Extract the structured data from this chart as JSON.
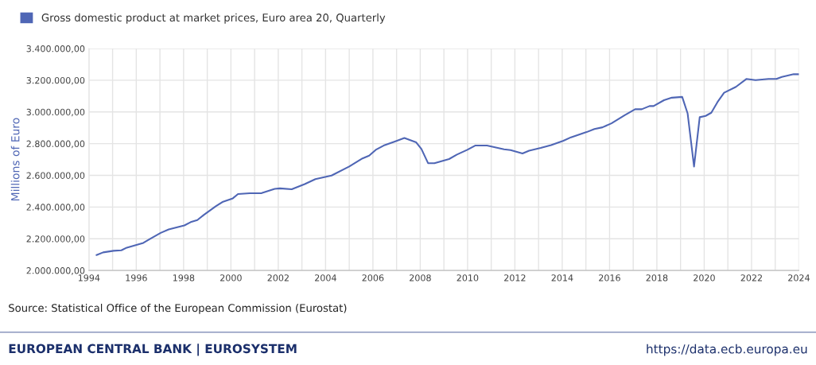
{
  "chart_data": {
    "type": "line",
    "xlabel": null,
    "ylabel": "Millions of Euro",
    "x": [
      1994.32,
      1994.6,
      1995.04,
      1995.37,
      1995.6,
      1996.3,
      1996.6,
      1997.03,
      1997.37,
      1998.03,
      1998.3,
      1998.58,
      1998.86,
      1999.36,
      1999.64,
      2000.08,
      2000.3,
      2000.8,
      2001.3,
      2001.85,
      2002.07,
      2002.57,
      2003.12,
      2003.57,
      2004.25,
      2005.0,
      2005.56,
      2005.84,
      2006.12,
      2006.5,
      2006.95,
      2007.33,
      2007.83,
      2008.05,
      2008.33,
      2008.6,
      2009.22,
      2009.55,
      2009.99,
      2010.32,
      2010.82,
      2011.54,
      2011.82,
      2012.32,
      2012.6,
      2013.09,
      2013.53,
      2014.05,
      2014.37,
      2015.03,
      2015.36,
      2015.7,
      2016.08,
      2016.64,
      2017.08,
      2017.36,
      2017.69,
      2017.86,
      2018.3,
      2018.63,
      2019.07,
      2019.3,
      2019.57,
      2019.81,
      2020.06,
      2020.3,
      2020.56,
      2020.84,
      2021.34,
      2021.78,
      2022.17,
      2022.72,
      2023.05,
      2023.28,
      2023.78,
      2024.0
    ],
    "series": [
      {
        "name": "Gross domestic product at market prices, Euro area 20, Quarterly",
        "color": "#4f66b5",
        "values": [
          2097000,
          2114000,
          2124000,
          2127000,
          2144000,
          2174000,
          2201000,
          2237000,
          2259000,
          2284000,
          2305000,
          2318000,
          2351000,
          2405000,
          2432000,
          2455000,
          2482000,
          2487000,
          2488000,
          2515000,
          2518000,
          2512000,
          2545000,
          2576000,
          2599000,
          2656000,
          2707000,
          2724000,
          2761000,
          2791000,
          2815000,
          2836000,
          2808000,
          2766000,
          2677000,
          2677000,
          2703000,
          2731000,
          2761000,
          2788000,
          2788000,
          2764000,
          2759000,
          2738000,
          2756000,
          2773000,
          2791000,
          2818000,
          2840000,
          2873000,
          2892000,
          2903000,
          2928000,
          2979000,
          3017000,
          3017000,
          3037000,
          3037000,
          3074000,
          3090000,
          3095000,
          2990000,
          2656000,
          2967000,
          2975000,
          2995000,
          3062000,
          3121000,
          3158000,
          3208000,
          3201000,
          3208000,
          3208000,
          3221000,
          3238000,
          3238000
        ]
      }
    ],
    "xlim": [
      1994,
      2024
    ],
    "xticks": [
      1994,
      {
        "value": 1995,
        "label": null
      },
      1996,
      {
        "value": 1997,
        "label": null
      },
      1998,
      {
        "value": 1999,
        "label": null
      },
      2000,
      {
        "value": 2001,
        "label": null
      },
      2002,
      {
        "value": 2003,
        "label": null
      },
      2004,
      {
        "value": 2005,
        "label": null
      },
      2006,
      {
        "value": 2007,
        "label": null
      },
      2008,
      {
        "value": 2009,
        "label": null
      },
      2010,
      {
        "value": 2011,
        "label": null
      },
      2012,
      {
        "value": 2013,
        "label": null
      },
      2014,
      {
        "value": 2015,
        "label": null
      },
      2016,
      {
        "value": 2017,
        "label": null
      },
      2018,
      {
        "value": 2019,
        "label": null
      },
      2020,
      {
        "value": 2021,
        "label": null
      },
      2022,
      {
        "value": 2023,
        "label": null
      },
      2024
    ],
    "ylim": [
      2000000,
      3400000
    ],
    "yticks": [
      {
        "value": 2000000,
        "label": "2.000.000,00"
      },
      {
        "value": 2200000,
        "label": "2.200.000,00"
      },
      {
        "value": 2400000,
        "label": "2.400.000,00"
      },
      {
        "value": 2600000,
        "label": "2.600.000,00"
      },
      {
        "value": 2800000,
        "label": "2.800.000,00"
      },
      {
        "value": 3000000,
        "label": "3.000.000,00"
      },
      {
        "value": 3200000,
        "label": "3.200.000,00"
      },
      {
        "value": 3400000,
        "label": "3.400.000,00"
      }
    ],
    "grid": true,
    "legend": "top left",
    "marker": "none",
    "line_style": "solid",
    "annotations": [
      "Source: Statistical Office of the European Commission (Eurostat)",
      "EUROPEAN CENTRAL BANK | EUROSYSTEM",
      "https://data.ecb.europa.eu"
    ]
  }
}
